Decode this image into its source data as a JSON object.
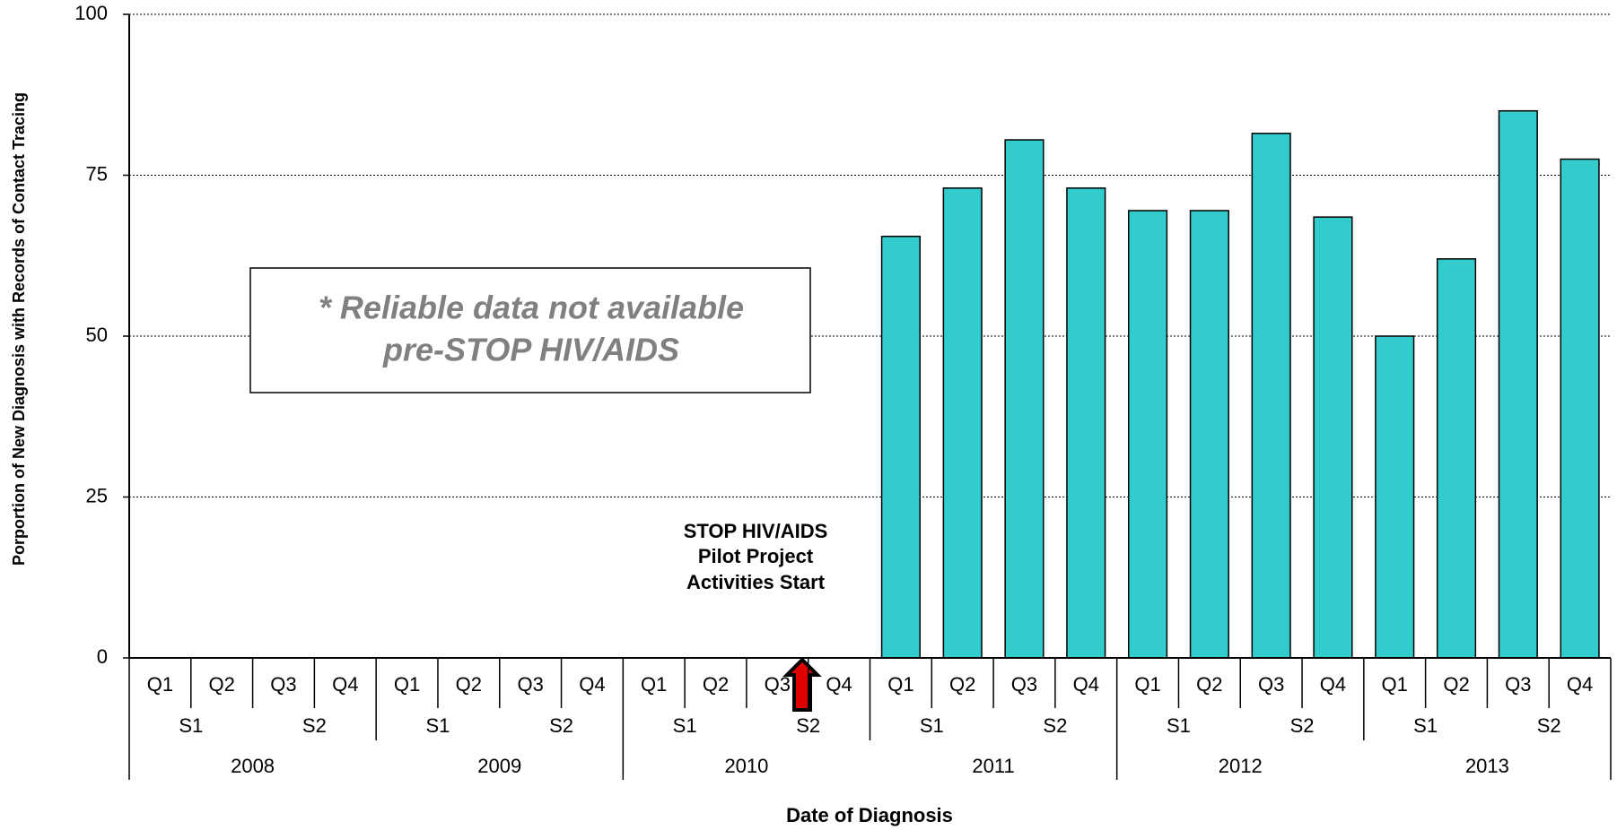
{
  "chart_data": {
    "type": "bar",
    "y_label": "Porportion of New Diagnosis  with Records of Contact Tracing",
    "x_label": "Date of Diagnosis",
    "categories": [
      "Q1",
      "Q2",
      "Q3",
      "Q4",
      "Q1",
      "Q2",
      "Q3",
      "Q4",
      "Q1",
      "Q2",
      "Q3",
      "Q4",
      "Q1",
      "Q2",
      "Q3",
      "Q4",
      "Q1",
      "Q2",
      "Q3",
      "Q4",
      "Q1",
      "Q2",
      "Q3",
      "Q4"
    ],
    "semesters": [
      "S1",
      "S2",
      "S1",
      "S2",
      "S1",
      "S2",
      "S1",
      "S2",
      "S1",
      "S2",
      "S1",
      "S2"
    ],
    "years": [
      "2008",
      "2009",
      "2010",
      "2011",
      "2012",
      "2013"
    ],
    "values": [
      null,
      null,
      null,
      null,
      null,
      null,
      null,
      null,
      null,
      null,
      null,
      null,
      65.5,
      73,
      80.5,
      73,
      69.5,
      69.5,
      81.5,
      68.5,
      50,
      62,
      85,
      77.5
    ],
    "color": "#33cccc",
    "ylim": [
      0,
      100
    ],
    "yticks": [
      0,
      25,
      50,
      75,
      100
    ],
    "grid": true,
    "note": [
      "* Reliable data not available",
      "pre-STOP HIV/AIDS"
    ],
    "event": [
      "STOP HIV/AIDS",
      "Pilot Project",
      "Activities Start"
    ]
  }
}
